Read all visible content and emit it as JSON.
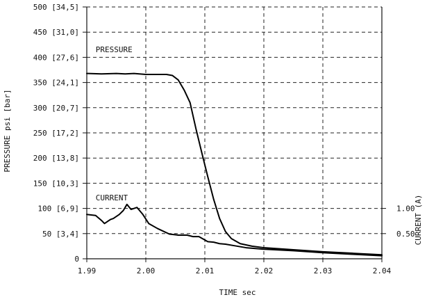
{
  "chart_data": {
    "type": "line",
    "xlabel": "TIME sec",
    "ylabel": "PRESSURE psi [bar]",
    "y2label": "CURRENT (A)",
    "xlim": [
      1.99,
      2.04
    ],
    "ylim": [
      0,
      500
    ],
    "y2_scale": {
      "amps_at_zero": 0.0,
      "pressure_equiv_per_amp": 100
    },
    "x_ticks": [
      {
        "value": 1.99,
        "label": "1.99"
      },
      {
        "value": 2.0,
        "label": "2.00"
      },
      {
        "value": 2.01,
        "label": "2.01"
      },
      {
        "value": 2.02,
        "label": "2.02"
      },
      {
        "value": 2.03,
        "label": "2.03"
      },
      {
        "value": 2.04,
        "label": "2.04"
      }
    ],
    "y_ticks": [
      {
        "value": 0,
        "label": "0"
      },
      {
        "value": 50,
        "label": "50 [3,4]"
      },
      {
        "value": 100,
        "label": "100 [6,9]"
      },
      {
        "value": 150,
        "label": "150 [10,3]"
      },
      {
        "value": 200,
        "label": "200 [13,8]"
      },
      {
        "value": 250,
        "label": "250 [17,2]"
      },
      {
        "value": 300,
        "label": "300 [20,7]"
      },
      {
        "value": 350,
        "label": "350 [24,1]"
      },
      {
        "value": 400,
        "label": "400 [27,6]"
      },
      {
        "value": 450,
        "label": "450 [31,0]"
      },
      {
        "value": 500,
        "label": "500 [34,5]"
      }
    ],
    "y2_ticks": [
      {
        "value": 0.5,
        "label": "0.50"
      },
      {
        "value": 1.0,
        "label": "1.00"
      }
    ],
    "grid": true,
    "annotations": [
      {
        "text": "PRESSURE",
        "x": 1.9915,
        "y": 410
      },
      {
        "text": "CURRENT",
        "x": 1.9915,
        "y": 116
      }
    ],
    "series": [
      {
        "name": "PRESSURE",
        "x": [
          1.99,
          1.9925,
          1.995,
          1.9965,
          1.998,
          2.0,
          2.002,
          2.0035,
          2.0045,
          2.0055,
          2.0065,
          2.0075,
          2.0085,
          2.0095,
          2.0105,
          2.0115,
          2.0125,
          2.0135,
          2.0145,
          2.016,
          2.018,
          2.02,
          2.025,
          2.03,
          2.035,
          2.04
        ],
        "y": [
          368,
          367,
          368,
          367,
          368,
          366,
          366,
          366,
          364,
          355,
          335,
          310,
          258,
          210,
          163,
          118,
          80,
          54,
          40,
          30,
          25,
          22,
          18,
          14,
          11,
          8
        ]
      },
      {
        "name": "CURRENT",
        "x": [
          1.99,
          1.9915,
          1.9925,
          1.993,
          1.994,
          1.9945,
          1.9955,
          1.9962,
          1.9968,
          1.9975,
          1.9985,
          1.9995,
          2.0005,
          2.002,
          2.004,
          2.0055,
          2.007,
          2.008,
          2.009,
          2.0105,
          2.0115,
          2.0125,
          2.0135,
          2.015,
          2.017,
          2.02,
          2.025,
          2.03,
          2.035,
          2.04
        ],
        "y": [
          88,
          86,
          76,
          70,
          78,
          80,
          88,
          96,
          108,
          98,
          102,
          88,
          70,
          60,
          49,
          47,
          47,
          44,
          44,
          34,
          33,
          30,
          29,
          26,
          22,
          19,
          16,
          12,
          9,
          6
        ]
      }
    ]
  }
}
